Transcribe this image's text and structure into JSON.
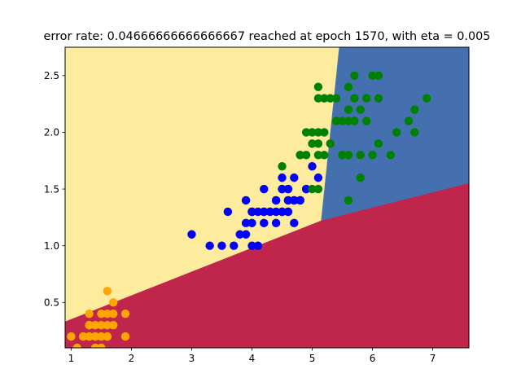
{
  "chart_data": {
    "type": "scatter",
    "title": "error rate: 0.04666666666666667 reached at epoch 1570, with eta = 0.005",
    "xlabel": "",
    "ylabel": "",
    "xlim": [
      0.9,
      7.6
    ],
    "ylim": [
      0.1,
      2.75
    ],
    "x_ticks": [
      1,
      2,
      3,
      4,
      5,
      6,
      7
    ],
    "y_ticks": [
      0.5,
      1.0,
      1.5,
      2.0,
      2.5
    ],
    "x_tick_labels": [
      "1",
      "2",
      "3",
      "4",
      "5",
      "6",
      "7"
    ],
    "y_tick_labels": [
      "0.5",
      "1.0",
      "1.5",
      "2.0",
      "2.5"
    ],
    "grid": false,
    "legend": "none",
    "decision_regions": [
      {
        "color": "#fdeb9e",
        "polygon": [
          [
            0.9,
            2.75
          ],
          [
            5.45,
            2.75
          ],
          [
            5.15,
            1.22
          ],
          [
            0.9,
            0.33
          ]
        ]
      },
      {
        "color": "#4470b0",
        "polygon": [
          [
            5.45,
            2.75
          ],
          [
            7.6,
            2.75
          ],
          [
            7.6,
            1.55
          ],
          [
            5.15,
            1.22
          ]
        ]
      },
      {
        "color": "#c0264c",
        "polygon": [
          [
            0.9,
            0.33
          ],
          [
            5.15,
            1.22
          ],
          [
            7.6,
            1.55
          ],
          [
            7.6,
            0.1
          ],
          [
            0.9,
            0.1
          ]
        ]
      }
    ],
    "series": [
      {
        "color": "#ffa500",
        "points": [
          [
            1.4,
            0.2
          ],
          [
            1.3,
            0.2
          ],
          [
            1.5,
            0.2
          ],
          [
            1.7,
            0.4
          ],
          [
            1.4,
            0.3
          ],
          [
            1.5,
            0.1
          ],
          [
            1.6,
            0.2
          ],
          [
            1.1,
            0.1
          ],
          [
            1.2,
            0.2
          ],
          [
            1.3,
            0.4
          ],
          [
            1.7,
            0.3
          ],
          [
            1.0,
            0.2
          ],
          [
            1.9,
            0.2
          ],
          [
            1.6,
            0.4
          ],
          [
            1.5,
            0.4
          ],
          [
            1.4,
            0.1
          ],
          [
            1.2,
            0.2
          ],
          [
            1.9,
            0.4
          ],
          [
            1.3,
            0.3
          ],
          [
            1.6,
            0.6
          ],
          [
            1.6,
            0.2
          ],
          [
            1.5,
            0.2
          ],
          [
            1.4,
            0.2
          ],
          [
            1.7,
            0.5
          ],
          [
            1.3,
            0.2
          ],
          [
            1.5,
            0.3
          ],
          [
            1.3,
            0.3
          ],
          [
            1.6,
            0.3
          ]
        ]
      },
      {
        "color": "#0000ff",
        "points": [
          [
            4.7,
            1.4
          ],
          [
            4.5,
            1.5
          ],
          [
            4.9,
            1.5
          ],
          [
            4.0,
            1.3
          ],
          [
            4.6,
            1.5
          ],
          [
            4.5,
            1.3
          ],
          [
            4.7,
            1.6
          ],
          [
            3.3,
            1.0
          ],
          [
            4.6,
            1.3
          ],
          [
            3.9,
            1.4
          ],
          [
            3.5,
            1.0
          ],
          [
            4.2,
            1.5
          ],
          [
            4.0,
            1.0
          ],
          [
            4.7,
            1.4
          ],
          [
            3.6,
            1.3
          ],
          [
            4.4,
            1.4
          ],
          [
            4.1,
            1.0
          ],
          [
            4.5,
            1.5
          ],
          [
            3.9,
            1.1
          ],
          [
            4.8,
            1.8
          ],
          [
            4.9,
            1.5
          ],
          [
            4.7,
            1.2
          ],
          [
            4.3,
            1.3
          ],
          [
            4.4,
            1.4
          ],
          [
            4.8,
            1.4
          ],
          [
            5.0,
            1.7
          ],
          [
            3.8,
            1.1
          ],
          [
            3.7,
            1.0
          ],
          [
            3.9,
            1.2
          ],
          [
            5.1,
            1.6
          ],
          [
            4.5,
            1.6
          ],
          [
            4.4,
            1.3
          ],
          [
            4.1,
            1.3
          ],
          [
            4.0,
            1.3
          ],
          [
            4.4,
            1.2
          ],
          [
            4.6,
            1.4
          ],
          [
            4.0,
            1.2
          ],
          [
            3.0,
            1.1
          ],
          [
            4.2,
            1.3
          ],
          [
            4.2,
            1.2
          ],
          [
            4.3,
            1.3
          ],
          [
            4.6,
            1.5
          ],
          [
            4.6,
            1.3
          ],
          [
            4.8,
            1.4
          ],
          [
            4.6,
            1.4
          ],
          [
            4.0,
            1.3
          ],
          [
            4.5,
            1.3
          ],
          [
            4.2,
            1.3
          ]
        ]
      },
      {
        "color": "#008000",
        "points": [
          [
            6.0,
            2.5
          ],
          [
            5.1,
            1.9
          ],
          [
            5.9,
            2.1
          ],
          [
            5.6,
            1.8
          ],
          [
            5.8,
            2.2
          ],
          [
            6.6,
            2.1
          ],
          [
            4.5,
            1.7
          ],
          [
            6.3,
            1.8
          ],
          [
            5.8,
            1.8
          ],
          [
            6.1,
            2.5
          ],
          [
            5.1,
            2.0
          ],
          [
            5.3,
            1.9
          ],
          [
            5.5,
            2.1
          ],
          [
            5.0,
            2.0
          ],
          [
            5.1,
            2.4
          ],
          [
            5.3,
            2.3
          ],
          [
            5.5,
            1.8
          ],
          [
            6.7,
            2.2
          ],
          [
            6.9,
            2.3
          ],
          [
            5.0,
            1.5
          ],
          [
            5.7,
            2.3
          ],
          [
            4.9,
            2.0
          ],
          [
            6.7,
            2.0
          ],
          [
            4.9,
            1.8
          ],
          [
            5.7,
            2.1
          ],
          [
            6.0,
            1.8
          ],
          [
            4.8,
            1.8
          ],
          [
            5.6,
            2.1
          ],
          [
            5.8,
            1.6
          ],
          [
            6.1,
            1.9
          ],
          [
            6.4,
            2.0
          ],
          [
            5.6,
            2.2
          ],
          [
            5.1,
            1.5
          ],
          [
            5.6,
            1.4
          ],
          [
            6.1,
            2.3
          ],
          [
            5.6,
            2.4
          ],
          [
            5.5,
            1.8
          ],
          [
            5.4,
            2.1
          ],
          [
            5.2,
            2.3
          ],
          [
            5.9,
            2.3
          ],
          [
            5.7,
            2.5
          ],
          [
            5.2,
            2.0
          ],
          [
            5.0,
            1.9
          ],
          [
            5.4,
            2.3
          ],
          [
            5.1,
            1.8
          ],
          [
            5.1,
            2.3
          ],
          [
            5.2,
            1.8
          ],
          [
            5.7,
            2.1
          ]
        ]
      }
    ]
  }
}
